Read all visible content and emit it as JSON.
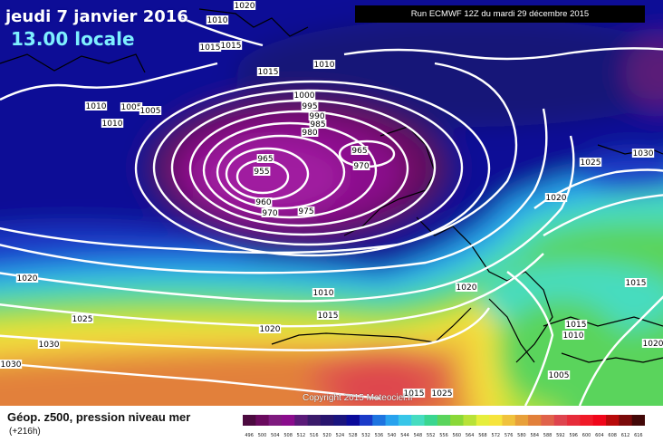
{
  "header": {
    "date": "jeudi 7 janvier 2016",
    "local_time": "13.00 locale",
    "run": "Run ECMWF 12Z du mardi 29 décembre 2015"
  },
  "copyright": "Copyright 2015 Meteociel.fr",
  "footer": {
    "title": "Géop. z500, pression niveau mer",
    "subtitle": "(+216h)"
  },
  "isobar_labels": [
    "1020",
    "1015",
    "1015",
    "1010",
    "1010",
    "1005",
    "1010",
    "1010",
    "1015",
    "1005",
    "1000",
    "995",
    "990",
    "985",
    "980",
    "965",
    "955",
    "960",
    "970",
    "975",
    "965",
    "970",
    "1025",
    "1030",
    "1020",
    "1020",
    "1025",
    "1030",
    "1030",
    "1010",
    "1015",
    "1020",
    "1020",
    "1015",
    "1015",
    "1010",
    "1005",
    "1015",
    "1025",
    "1020"
  ],
  "legend": {
    "values": [
      "496",
      "500",
      "504",
      "508",
      "512",
      "516",
      "520",
      "524",
      "528",
      "532",
      "536",
      "540",
      "544",
      "548",
      "552",
      "556",
      "560",
      "564",
      "568",
      "572",
      "576",
      "580",
      "584",
      "588",
      "592",
      "596",
      "600",
      "604",
      "608",
      "612",
      "616"
    ],
    "colors": [
      "#4c0a40",
      "#6a0a5e",
      "#7e1a7e",
      "#8a0c8c",
      "#5a1a78",
      "#3a1a6a",
      "#28146e",
      "#1a147e",
      "#0a0a9a",
      "#1a3ac8",
      "#1e74e0",
      "#28a2ee",
      "#38c6e8",
      "#46dcc0",
      "#3ad690",
      "#5ad45c",
      "#8ad838",
      "#b8e238",
      "#e6ee3c",
      "#f6e43c",
      "#f0c23c",
      "#e8a03a",
      "#e2803a",
      "#e0624a",
      "#de444e",
      "#e62c3a",
      "#f01a28",
      "#f0061a",
      "#b80a0a",
      "#7a0a0a",
      "#420808"
    ]
  }
}
